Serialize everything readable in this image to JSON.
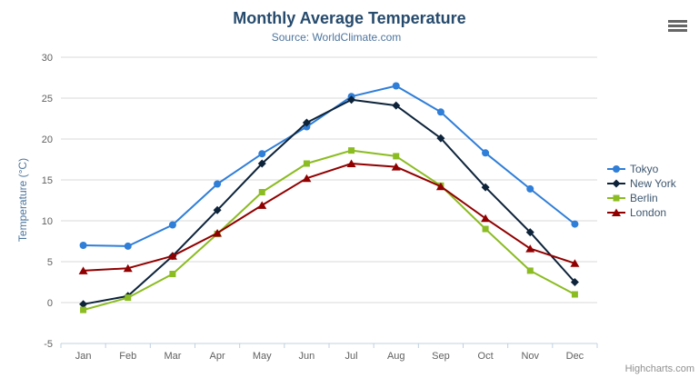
{
  "chart": {
    "title": "Monthly Average Temperature",
    "subtitle": "Source: WorldClimate.com",
    "y_axis_title": "Temperature (°C)",
    "credits": "Highcharts.com",
    "menu_icon": "hamburger-menu-icon"
  },
  "chart_data": {
    "type": "line",
    "title": "Monthly Average Temperature",
    "subtitle": "Source: WorldClimate.com",
    "xlabel": "",
    "ylabel": "Temperature (°C)",
    "categories": [
      "Jan",
      "Feb",
      "Mar",
      "Apr",
      "May",
      "Jun",
      "Jul",
      "Aug",
      "Sep",
      "Oct",
      "Nov",
      "Dec"
    ],
    "yticks": [
      -5,
      0,
      5,
      10,
      15,
      20,
      25,
      30
    ],
    "ylim": [
      -5,
      30
    ],
    "grid": true,
    "legend_position": "right",
    "series": [
      {
        "name": "Tokyo",
        "color": "#2f7ed8",
        "marker": "circle",
        "values": [
          7.0,
          6.9,
          9.5,
          14.5,
          18.2,
          21.5,
          25.2,
          26.5,
          23.3,
          18.3,
          13.9,
          9.6
        ]
      },
      {
        "name": "New York",
        "color": "#0d233a",
        "marker": "diamond",
        "values": [
          -0.2,
          0.8,
          5.7,
          11.3,
          17.0,
          22.0,
          24.8,
          24.1,
          20.1,
          14.1,
          8.6,
          2.5
        ]
      },
      {
        "name": "Berlin",
        "color": "#8bbc21",
        "marker": "square",
        "values": [
          -0.9,
          0.6,
          3.5,
          8.4,
          13.5,
          17.0,
          18.6,
          17.9,
          14.3,
          9.0,
          3.9,
          1.0
        ]
      },
      {
        "name": "London",
        "color": "#910000",
        "marker": "triangle",
        "values": [
          3.9,
          4.2,
          5.7,
          8.5,
          11.9,
          15.2,
          17.0,
          16.6,
          14.2,
          10.3,
          6.6,
          4.8
        ]
      }
    ],
    "colors": {
      "grid_line": "#d8d8d8",
      "axis_line": "#c0d0e0",
      "tick_label": "#606060",
      "title": "#274b6d",
      "subtitle": "#4d759e",
      "legend_text": "#3e576f"
    }
  }
}
